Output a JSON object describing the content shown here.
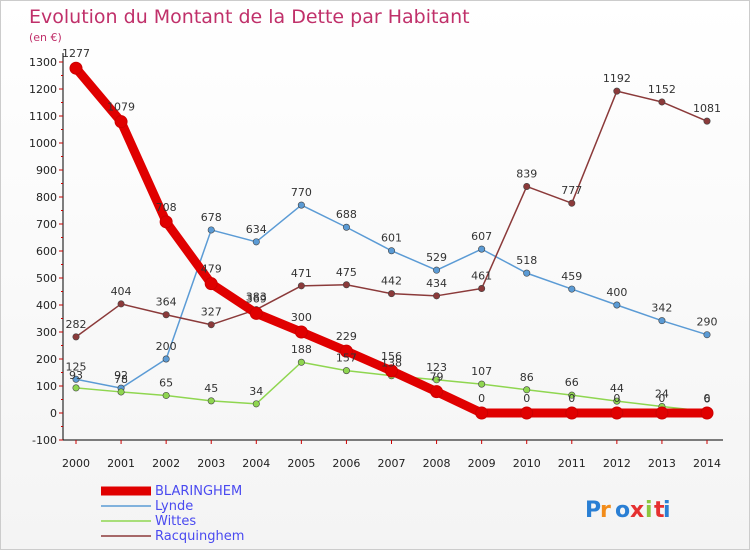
{
  "chart_data": {
    "type": "line",
    "title": "Evolution du Montant de la Dette par Habitant",
    "subtitle": "(en €)",
    "categories": [
      "2000",
      "2001",
      "2002",
      "2003",
      "2004",
      "2005",
      "2006",
      "2007",
      "2008",
      "2009",
      "2010",
      "2011",
      "2012",
      "2013",
      "2014"
    ],
    "ylim": [
      -100,
      1300
    ],
    "yticks": [
      -100,
      0,
      100,
      200,
      300,
      400,
      500,
      600,
      700,
      800,
      900,
      1000,
      1100,
      1200,
      1300
    ],
    "grid": false,
    "legend_placement": "bottom-left",
    "series": [
      {
        "name": "BLARINGHEM",
        "color": "#e00000",
        "values": [
          1277,
          1079,
          708,
          479,
          369,
          300,
          229,
          156,
          79,
          0,
          0,
          0,
          0,
          0,
          0
        ]
      },
      {
        "name": "Lynde",
        "color": "#5b9bd5",
        "values": [
          125,
          92,
          200,
          678,
          634,
          770,
          688,
          601,
          529,
          607,
          518,
          459,
          400,
          342,
          290
        ]
      },
      {
        "name": "Wittes",
        "color": "#8fd650",
        "values": [
          93,
          78,
          65,
          45,
          34,
          188,
          157,
          138,
          123,
          107,
          86,
          66,
          44,
          24,
          6
        ]
      },
      {
        "name": "Racquinghem",
        "color": "#8b3a3a",
        "values": [
          282,
          404,
          364,
          327,
          383,
          471,
          475,
          442,
          434,
          461,
          839,
          777,
          1192,
          1152,
          1081
        ]
      }
    ]
  },
  "logo_text": "Proxiti",
  "colors": {
    "title": "#c0306a",
    "axis": "#000000"
  }
}
